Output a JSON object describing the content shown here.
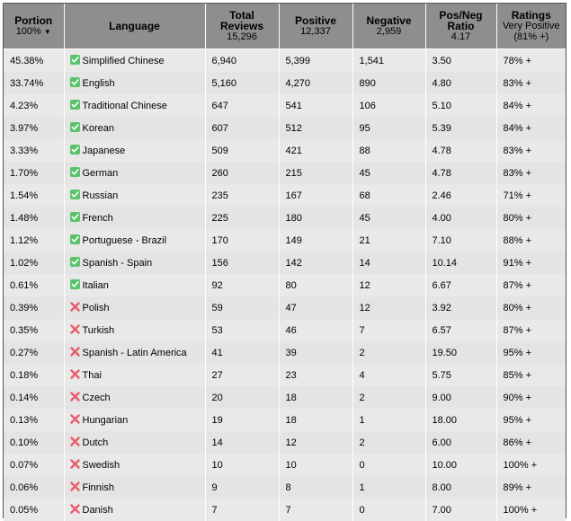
{
  "headers": {
    "portion": {
      "label": "Portion",
      "sub": "100%",
      "sort_indicator": "▼"
    },
    "language": {
      "label": "Language"
    },
    "total": {
      "label": "Total Reviews",
      "sub": "15,296"
    },
    "positive": {
      "label": "Positive",
      "sub": "12,337"
    },
    "negative": {
      "label": "Negative",
      "sub": "2,959"
    },
    "ratio": {
      "label": "Pos/Neg Ratio",
      "sub": "4.17"
    },
    "ratings": {
      "label": "Ratings",
      "sub": "Very Positive (81% +)"
    }
  },
  "colors": {
    "header_bg": "#8e8e8e",
    "row_bg": "#e9e9e9",
    "check_icon": "#5ac36a",
    "cross_icon": "#e85d6a"
  },
  "rows": [
    {
      "portion": "45.38%",
      "language": "Simplified Chinese",
      "supported": true,
      "icon": "check-icon",
      "total": "6,940",
      "positive": "5,399",
      "negative": "1,541",
      "ratio": "3.50",
      "rating": "78% +"
    },
    {
      "portion": "33.74%",
      "language": "English",
      "supported": true,
      "icon": "check-icon",
      "total": "5,160",
      "positive": "4,270",
      "negative": "890",
      "ratio": "4.80",
      "rating": "83% +"
    },
    {
      "portion": "4.23%",
      "language": "Traditional Chinese",
      "supported": true,
      "icon": "check-icon",
      "total": "647",
      "positive": "541",
      "negative": "106",
      "ratio": "5.10",
      "rating": "84% +"
    },
    {
      "portion": "3.97%",
      "language": "Korean",
      "supported": true,
      "icon": "check-icon",
      "total": "607",
      "positive": "512",
      "negative": "95",
      "ratio": "5.39",
      "rating": "84% +"
    },
    {
      "portion": "3.33%",
      "language": "Japanese",
      "supported": true,
      "icon": "check-icon",
      "total": "509",
      "positive": "421",
      "negative": "88",
      "ratio": "4.78",
      "rating": "83% +"
    },
    {
      "portion": "1.70%",
      "language": "German",
      "supported": true,
      "icon": "check-icon",
      "total": "260",
      "positive": "215",
      "negative": "45",
      "ratio": "4.78",
      "rating": "83% +"
    },
    {
      "portion": "1.54%",
      "language": "Russian",
      "supported": true,
      "icon": "check-icon",
      "total": "235",
      "positive": "167",
      "negative": "68",
      "ratio": "2.46",
      "rating": "71% +"
    },
    {
      "portion": "1.48%",
      "language": "French",
      "supported": true,
      "icon": "check-icon",
      "total": "225",
      "positive": "180",
      "negative": "45",
      "ratio": "4.00",
      "rating": "80% +"
    },
    {
      "portion": "1.12%",
      "language": "Portuguese - Brazil",
      "supported": true,
      "icon": "check-icon",
      "total": "170",
      "positive": "149",
      "negative": "21",
      "ratio": "7.10",
      "rating": "88% +"
    },
    {
      "portion": "1.02%",
      "language": "Spanish - Spain",
      "supported": true,
      "icon": "check-icon",
      "total": "156",
      "positive": "142",
      "negative": "14",
      "ratio": "10.14",
      "rating": "91% +"
    },
    {
      "portion": "0.61%",
      "language": "Italian",
      "supported": true,
      "icon": "check-icon",
      "total": "92",
      "positive": "80",
      "negative": "12",
      "ratio": "6.67",
      "rating": "87% +"
    },
    {
      "portion": "0.39%",
      "language": "Polish",
      "supported": false,
      "icon": "cross-icon",
      "total": "59",
      "positive": "47",
      "negative": "12",
      "ratio": "3.92",
      "rating": "80% +"
    },
    {
      "portion": "0.35%",
      "language": "Turkish",
      "supported": false,
      "icon": "cross-icon",
      "total": "53",
      "positive": "46",
      "negative": "7",
      "ratio": "6.57",
      "rating": "87% +"
    },
    {
      "portion": "0.27%",
      "language": "Spanish - Latin America",
      "supported": false,
      "icon": "cross-icon",
      "total": "41",
      "positive": "39",
      "negative": "2",
      "ratio": "19.50",
      "rating": "95% +"
    },
    {
      "portion": "0.18%",
      "language": "Thai",
      "supported": false,
      "icon": "cross-icon",
      "total": "27",
      "positive": "23",
      "negative": "4",
      "ratio": "5.75",
      "rating": "85% +"
    },
    {
      "portion": "0.14%",
      "language": "Czech",
      "supported": false,
      "icon": "cross-icon",
      "total": "20",
      "positive": "18",
      "negative": "2",
      "ratio": "9.00",
      "rating": "90% +"
    },
    {
      "portion": "0.13%",
      "language": "Hungarian",
      "supported": false,
      "icon": "cross-icon",
      "total": "19",
      "positive": "18",
      "negative": "1",
      "ratio": "18.00",
      "rating": "95% +"
    },
    {
      "portion": "0.10%",
      "language": "Dutch",
      "supported": false,
      "icon": "cross-icon",
      "total": "14",
      "positive": "12",
      "negative": "2",
      "ratio": "6.00",
      "rating": "86% +"
    },
    {
      "portion": "0.07%",
      "language": "Swedish",
      "supported": false,
      "icon": "cross-icon",
      "total": "10",
      "positive": "10",
      "negative": "0",
      "ratio": "10.00",
      "rating": "100% +"
    },
    {
      "portion": "0.06%",
      "language": "Finnish",
      "supported": false,
      "icon": "cross-icon",
      "total": "9",
      "positive": "8",
      "negative": "1",
      "ratio": "8.00",
      "rating": "89% +"
    },
    {
      "portion": "0.05%",
      "language": "Danish",
      "supported": false,
      "icon": "cross-icon",
      "total": "7",
      "positive": "7",
      "negative": "0",
      "ratio": "7.00",
      "rating": "100% +"
    }
  ]
}
